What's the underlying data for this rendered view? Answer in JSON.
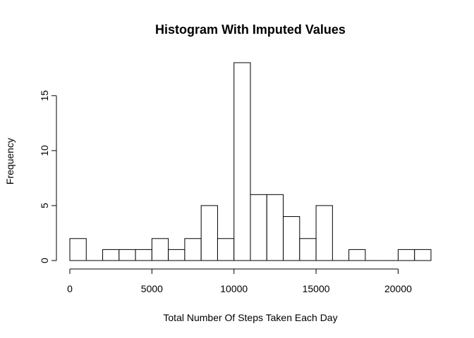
{
  "chart_data": {
    "type": "bar",
    "title": "Histogram With Imputed Values",
    "xlabel": "Total Number Of Steps Taken Each Day",
    "ylabel": "Frequency",
    "bin_width": 1000,
    "bin_edges": [
      0,
      1000,
      2000,
      3000,
      4000,
      5000,
      6000,
      7000,
      8000,
      9000,
      10000,
      11000,
      12000,
      13000,
      14000,
      15000,
      16000,
      17000,
      18000,
      19000,
      20000,
      21000,
      22000
    ],
    "values": [
      2,
      0,
      1,
      1,
      1,
      2,
      1,
      2,
      5,
      2,
      18,
      6,
      6,
      4,
      2,
      5,
      0,
      1,
      0,
      0,
      1,
      1
    ],
    "xlim": [
      0,
      22000
    ],
    "ylim": [
      0,
      18
    ],
    "x_ticks": [
      0,
      5000,
      10000,
      15000,
      20000
    ],
    "x_tick_labels": [
      "0",
      "5000",
      "10000",
      "15000",
      "20000"
    ],
    "y_ticks": [
      0,
      5,
      10,
      15
    ],
    "y_tick_labels": [
      "0",
      "5",
      "10",
      "15"
    ],
    "colors": {
      "bar_fill": "#ffffff",
      "bar_stroke": "#000000"
    },
    "grid": false,
    "legend": "none"
  }
}
